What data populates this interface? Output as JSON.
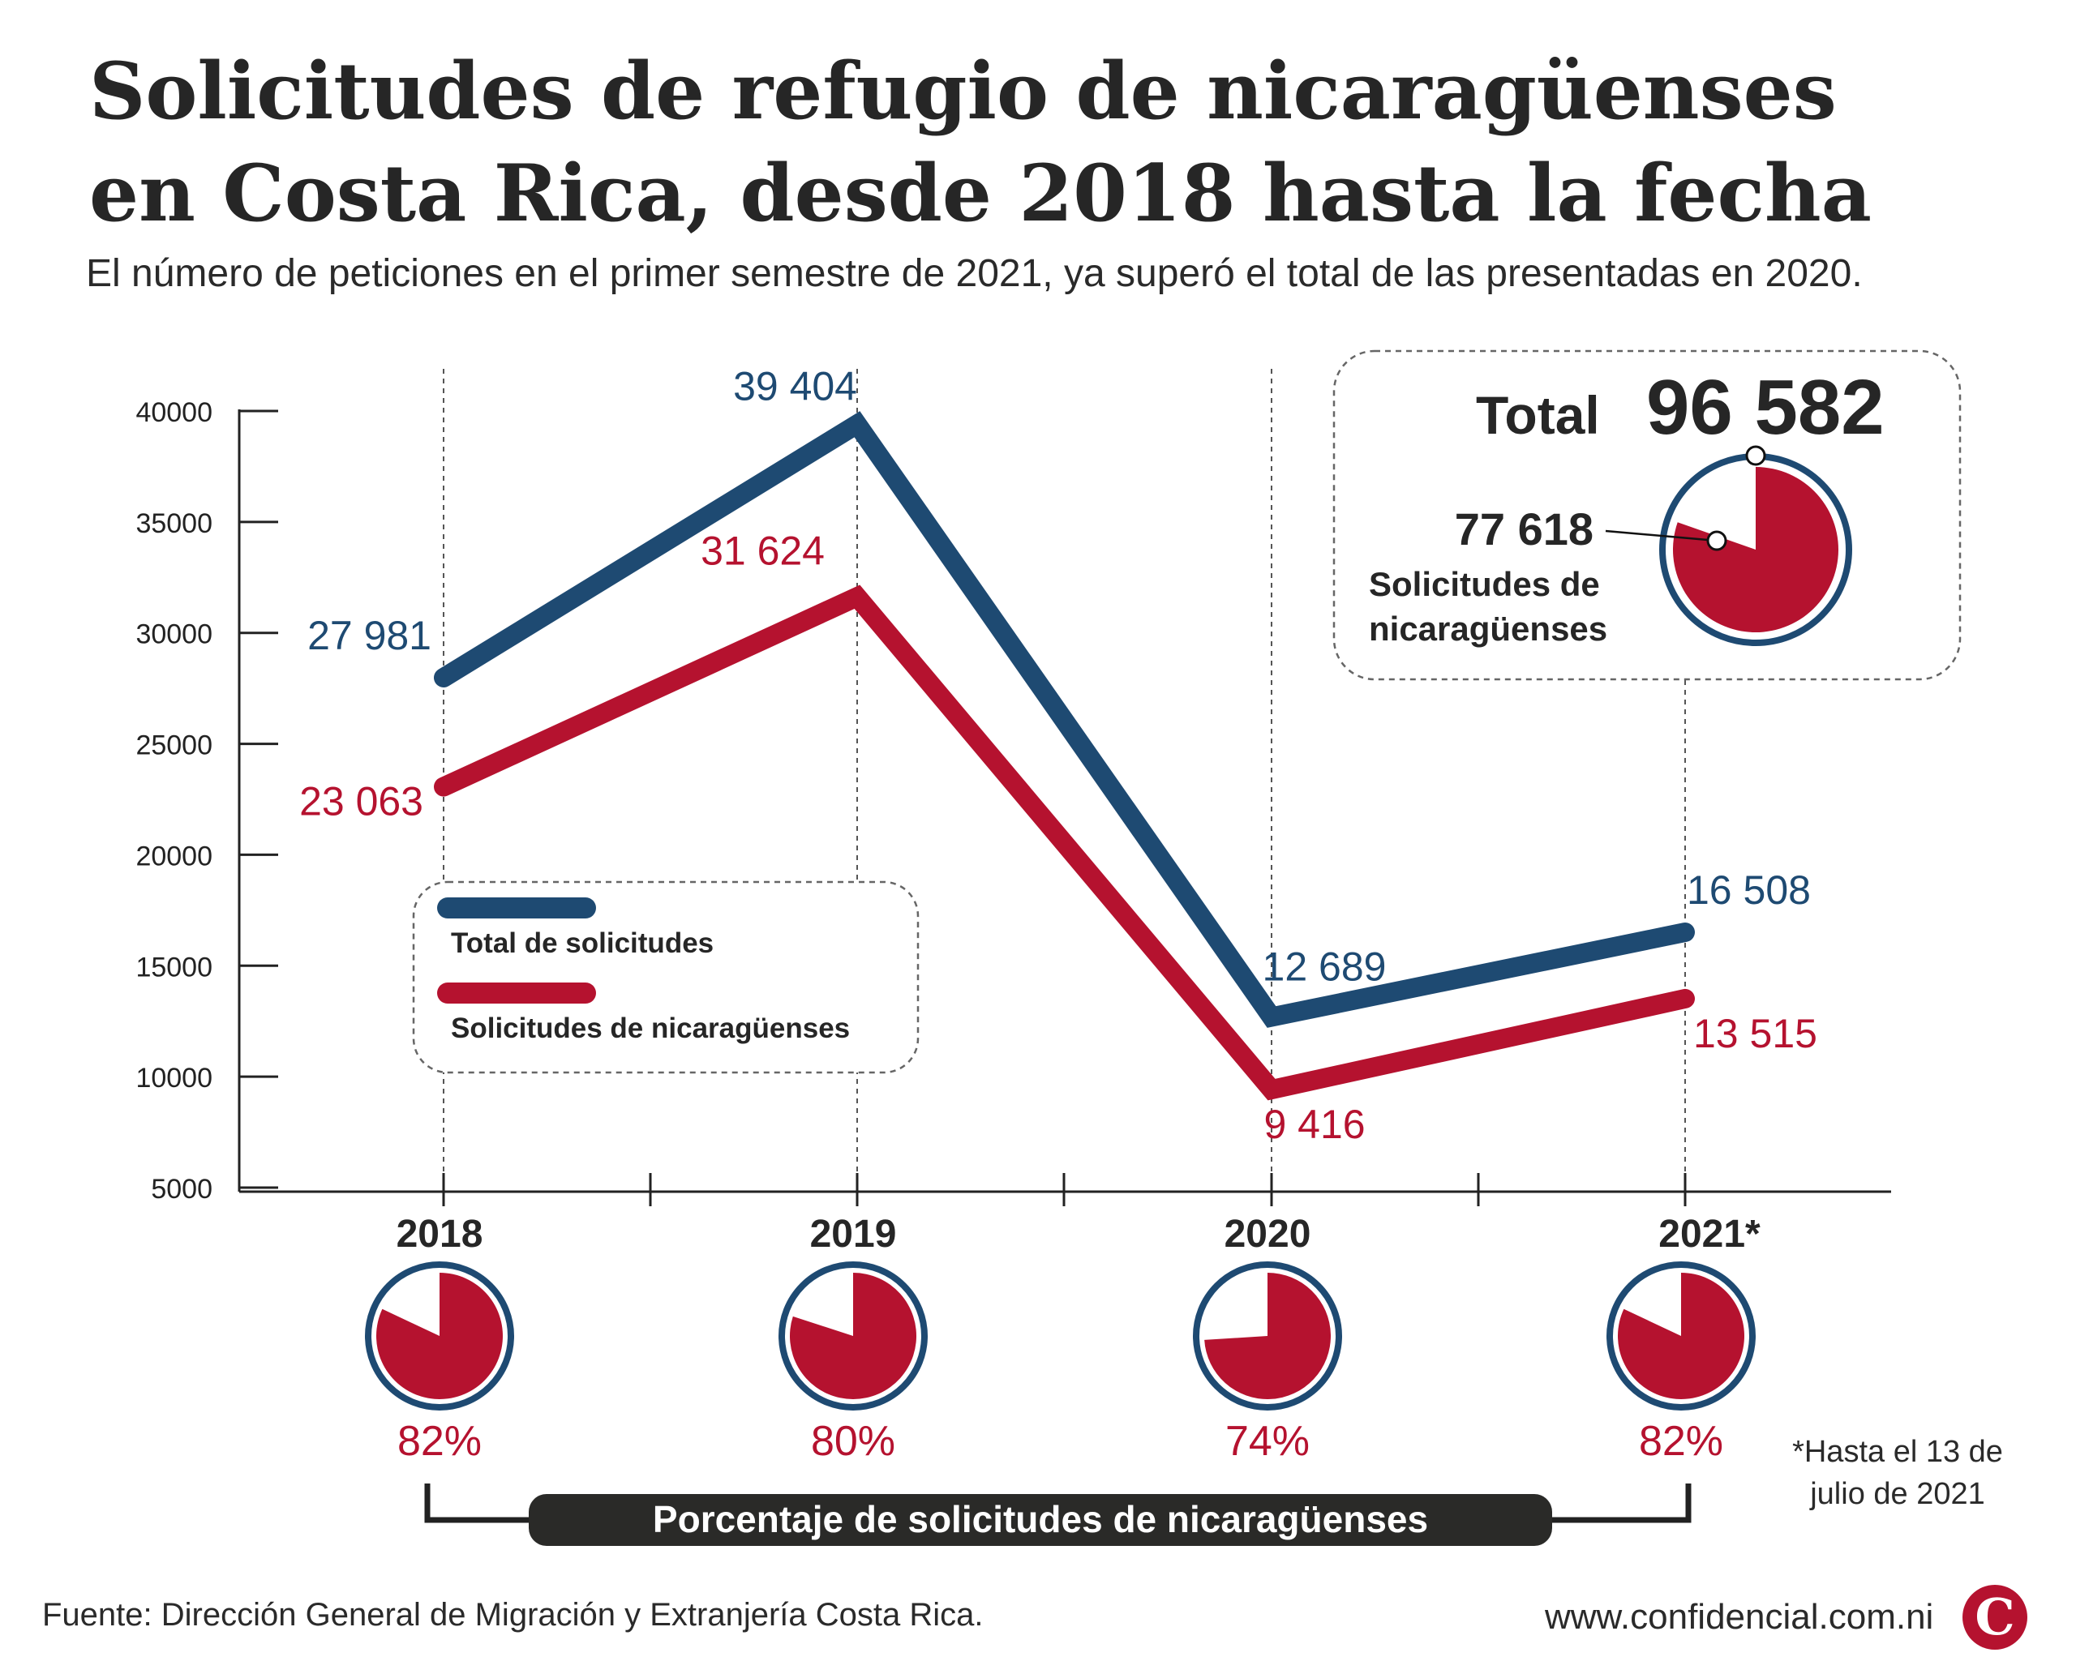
{
  "header": {
    "title": "Solicitudes de refugio de nicaragüenses en Costa Rica, desde 2018 hasta la fecha",
    "subtitle": "El número de peticiones en el primer semestre de 2021, ya superó el total de las presentadas en 2020."
  },
  "colors": {
    "total": "#1e4a72",
    "nica": "#b5122f",
    "text": "#262626",
    "ring": "#1e4a72",
    "dark_bar": "#2a2a28"
  },
  "chart_data": {
    "type": "line",
    "categories": [
      "2018",
      "2019",
      "2020",
      "2021*"
    ],
    "series": [
      {
        "name": "Total de solicitudes",
        "values": [
          27981,
          39404,
          12689,
          16508
        ],
        "labels": [
          "27 981",
          "39 404",
          "12 689",
          "16 508"
        ]
      },
      {
        "name": "Solicitudes de nicaragüenses",
        "values": [
          23063,
          31624,
          9416,
          13515
        ],
        "labels": [
          "23 063",
          "31 624",
          "9 416",
          "13 515"
        ]
      }
    ],
    "ylim": [
      5000,
      40000
    ],
    "yticks": [
      "5000",
      "10000",
      "15000",
      "20000",
      "25000",
      "30000",
      "35000",
      "40000"
    ],
    "percentages": {
      "values": [
        82,
        80,
        74,
        82
      ],
      "labels": [
        "82%",
        "80%",
        "74%",
        "82%"
      ]
    },
    "percent_caption": "Porcentaje de solicitudes de nicaragüenses",
    "total_box": {
      "total_label": "Total",
      "total_value": "96 582",
      "nica_value": "77 618",
      "nica_label_line1": "Solicitudes de",
      "nica_label_line2": "nicaragüenses",
      "nica_fraction": 0.8036
    },
    "legend": {
      "items": [
        "Total de solicitudes",
        "Solicitudes de nicaragüenses"
      ]
    }
  },
  "footer": {
    "source": "Fuente: Dirección General de Migración y Extranjería Costa Rica.",
    "footnote_line1": "*Hasta el 13 de",
    "footnote_line2": "julio de 2021",
    "website": "www.confidencial.com.ni",
    "logo_letter": "C"
  }
}
